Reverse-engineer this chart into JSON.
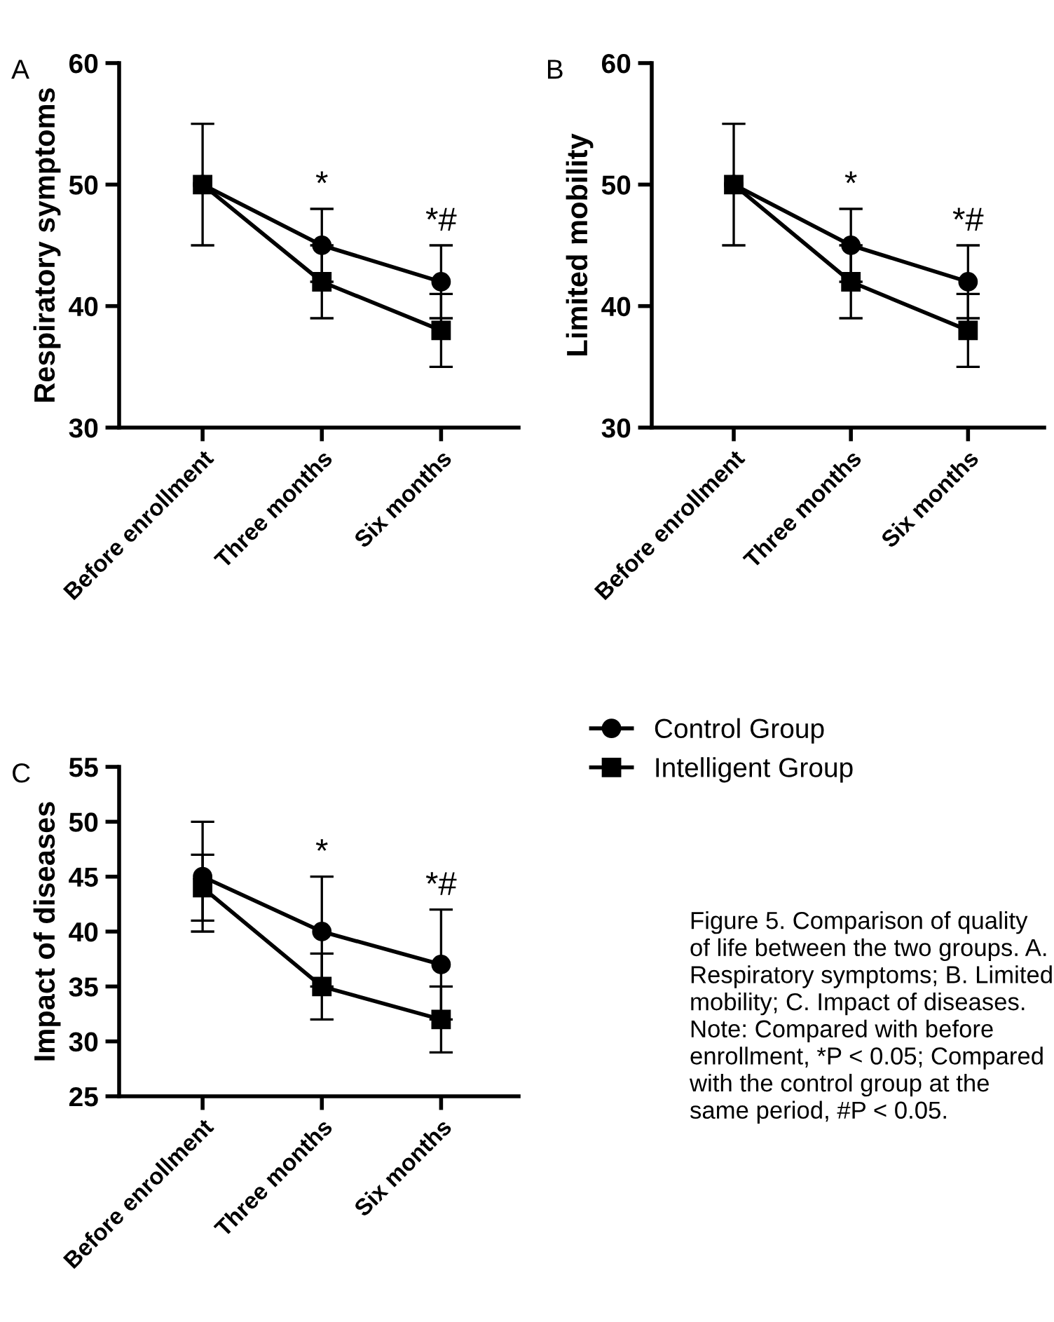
{
  "chart_data": [
    {
      "type": "line",
      "title": "A",
      "ylabel": "Respiratory symptoms",
      "categories": [
        "Before enrollment",
        "Three months",
        "Six months"
      ],
      "ylim": [
        30,
        60
      ],
      "yticks": [
        30,
        40,
        50,
        60
      ],
      "grid": false,
      "legend": false,
      "series": [
        {
          "color": "#000000",
          "marker": "circle",
          "values": [
            50,
            45,
            42
          ],
          "errors": [
            5,
            3,
            3
          ]
        },
        {
          "color": "#000000",
          "marker": "square",
          "values": [
            50,
            42,
            38
          ],
          "errors": [
            null,
            3,
            3
          ]
        }
      ],
      "annotations": [
        "*",
        "*#"
      ]
    },
    {
      "type": "line",
      "title": "B",
      "ylabel": "Limited mobility",
      "categories": [
        "Before enrollment",
        "Three months",
        "Six months"
      ],
      "ylim": [
        30,
        60
      ],
      "yticks": [
        30,
        40,
        50,
        60
      ],
      "grid": false,
      "legend": false,
      "series": [
        {
          "color": "#000000",
          "marker": "circle",
          "values": [
            50,
            45,
            42
          ],
          "errors": [
            5,
            3,
            3
          ]
        },
        {
          "color": "#000000",
          "marker": "square",
          "values": [
            50,
            42,
            38
          ],
          "errors": [
            null,
            3,
            3
          ]
        }
      ],
      "annotations": [
        "*",
        "*#"
      ]
    },
    {
      "type": "line",
      "title": "C",
      "ylabel": "Impact of diseases",
      "categories": [
        "Before enrollment",
        "Three months",
        "Six months"
      ],
      "ylim": [
        25,
        55
      ],
      "yticks": [
        25,
        30,
        35,
        40,
        45,
        50,
        55
      ],
      "grid": false,
      "legend": "right",
      "series": [
        {
          "name": "Control Group",
          "color": "#000000",
          "marker": "circle",
          "values": [
            45,
            40,
            37
          ],
          "errors": [
            5,
            5,
            5
          ]
        },
        {
          "name": "Intelligent Group",
          "color": "#000000",
          "marker": "square",
          "values": [
            44,
            35,
            32
          ],
          "errors": [
            3,
            3,
            3
          ]
        }
      ],
      "annotations": [
        "*",
        "*#",
        "Figure 5. Comparison of quality of life between the two groups. A. Respiratory symptoms; B. Limited mobility; C. Impact of diseases. Note: Compared with before enrollment, *P < 0.05; Compared with the control group at the same period, #P < 0.05."
      ]
    }
  ]
}
